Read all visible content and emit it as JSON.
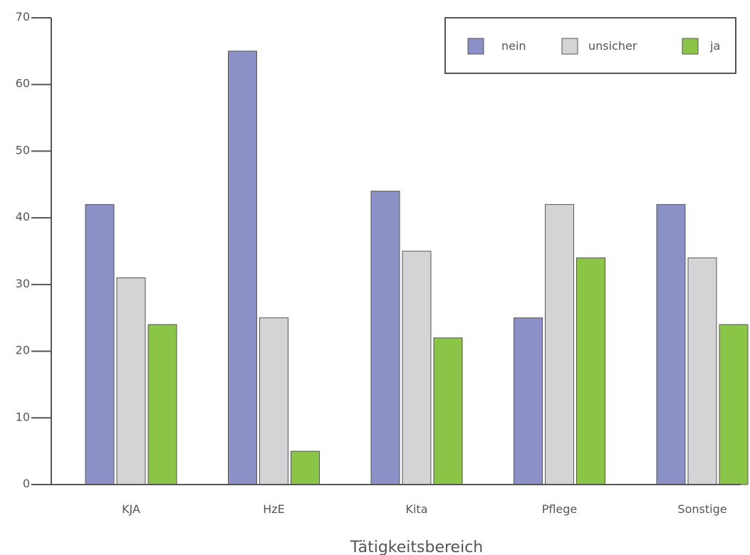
{
  "chart_data": {
    "type": "bar",
    "categories": [
      "KJA",
      "HzE",
      "Kita",
      "Pflege",
      "Sonstige"
    ],
    "series": [
      {
        "name": "nein",
        "values": [
          42,
          65,
          44,
          25,
          42
        ],
        "color": "#8b91c7"
      },
      {
        "name": "unsicher",
        "values": [
          31,
          25,
          35,
          42,
          34
        ],
        "color": "#d4d4d6"
      },
      {
        "name": "ja",
        "values": [
          24,
          5,
          22,
          34,
          24
        ],
        "color": "#8bc548"
      }
    ],
    "title": "",
    "xlabel": "Tätigkeitsbereich",
    "ylabel": "",
    "ylim": [
      0,
      70
    ],
    "yticks": [
      0,
      10,
      20,
      30,
      40,
      50,
      60,
      70
    ],
    "grid": false,
    "legend_position": "top-right"
  }
}
